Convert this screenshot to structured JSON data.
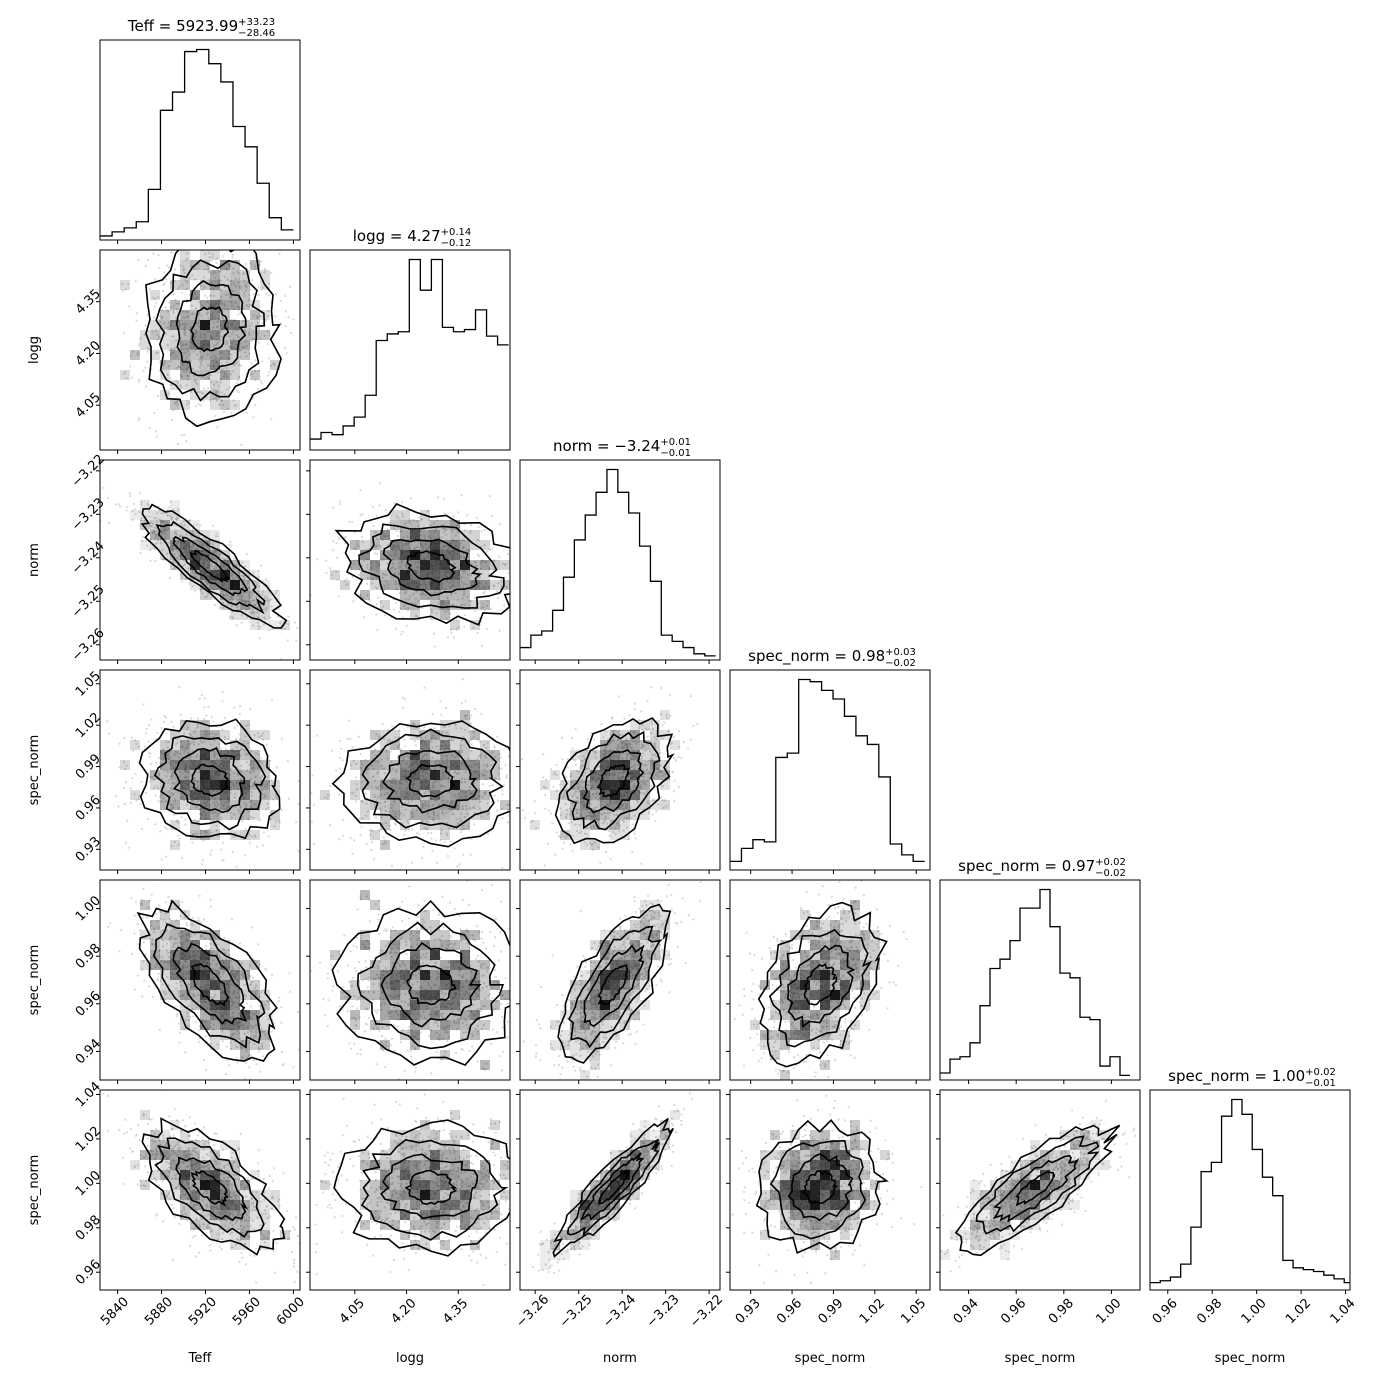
{
  "figure": {
    "kind": "corner plot"
  },
  "params": [
    {
      "name": "Teff",
      "value": "5923.99",
      "plus": "+33.23",
      "minus": "−28.46",
      "ticks": [
        5840,
        5880,
        5920,
        5960,
        6000
      ],
      "tick_labels": [
        "5840",
        "5880",
        "5920",
        "5960",
        "6000"
      ],
      "range": [
        5824,
        6006
      ],
      "median": 5923.99,
      "sigma": 31
    },
    {
      "name": "logg",
      "value": "4.27",
      "plus": "+0.14",
      "minus": "−0.12",
      "ticks": [
        4.05,
        4.2,
        4.35
      ],
      "tick_labels": [
        "4.05",
        "4.20",
        "4.35"
      ],
      "range": [
        3.92,
        4.5
      ],
      "median": 4.27,
      "sigma": 0.13
    },
    {
      "name": "norm",
      "value": "−3.24",
      "plus": "+0.01",
      "minus": "−0.01",
      "ticks": [
        -3.26,
        -3.25,
        -3.24,
        -3.23,
        -3.22
      ],
      "tick_labels": [
        "−3.26",
        "−3.25",
        "−3.24",
        "−3.23",
        "−3.22"
      ],
      "range": [
        -3.2635,
        -3.2175
      ],
      "median": -3.242,
      "sigma": 0.0065
    },
    {
      "name": "spec_norm",
      "value": "0.98",
      "plus": "+0.03",
      "minus": "−0.02",
      "ticks": [
        0.93,
        0.96,
        0.99,
        1.02,
        1.05
      ],
      "tick_labels": [
        "0.93",
        "0.96",
        "0.99",
        "1.02",
        "1.05"
      ],
      "range": [
        0.915,
        1.06
      ],
      "median": 0.98,
      "sigma": 0.022
    },
    {
      "name": "spec_norm",
      "value": "0.97",
      "plus": "+0.02",
      "minus": "−0.02",
      "ticks": [
        0.94,
        0.96,
        0.98,
        1.0
      ],
      "tick_labels": [
        "0.94",
        "0.96",
        "0.98",
        "1.00"
      ],
      "range": [
        0.928,
        1.012
      ],
      "median": 0.968,
      "sigma": 0.016
    },
    {
      "name": "spec_norm",
      "value": "1.00",
      "plus": "+0.02",
      "minus": "−0.01",
      "ticks": [
        0.96,
        0.98,
        1.0,
        1.02,
        1.04
      ],
      "tick_labels": [
        "0.96",
        "0.98",
        "1.00",
        "1.02",
        "1.04"
      ],
      "range": [
        0.952,
        1.042
      ],
      "median": 0.998,
      "sigma": 0.014
    }
  ],
  "chart_data": {
    "type": "corner",
    "series_names": [
      "Teff",
      "logg",
      "norm",
      "spec_norm",
      "spec_norm",
      "spec_norm"
    ],
    "histograms": [
      {
        "param": "Teff",
        "bin_edges": [
          5824,
          5835,
          5846,
          5857,
          5868,
          5879,
          5890,
          5901,
          5912,
          5923,
          5934,
          5945,
          5956,
          5967,
          5978,
          5989,
          6000
        ],
        "counts": [
          2,
          4,
          6,
          9,
          25,
          64,
          73,
          93,
          94,
          87,
          78,
          56,
          46,
          28,
          11,
          5
        ]
      },
      {
        "param": "logg",
        "bin_edges": [
          3.92,
          3.952,
          3.984,
          4.016,
          4.048,
          4.08,
          4.112,
          4.144,
          4.176,
          4.208,
          4.24,
          4.272,
          4.304,
          4.336,
          4.368,
          4.4,
          4.432,
          4.464,
          4.496
        ],
        "counts": [
          5,
          8,
          7,
          11,
          15,
          25,
          50,
          53,
          54,
          87,
          73,
          87,
          56,
          54,
          55,
          64,
          52,
          48
        ]
      },
      {
        "param": "norm",
        "bin_edges": [
          -3.2635,
          -3.261,
          -3.2585,
          -3.256,
          -3.2535,
          -3.251,
          -3.2485,
          -3.246,
          -3.2435,
          -3.241,
          -3.2385,
          -3.236,
          -3.2335,
          -3.231,
          -3.2285,
          -3.226,
          -3.2235,
          -3.221,
          -3.2185
        ],
        "counts": [
          6,
          12,
          14,
          24,
          40,
          58,
          70,
          81,
          92,
          81,
          71,
          55,
          38,
          12,
          9,
          6,
          3,
          2
        ]
      },
      {
        "param": "spec_norm",
        "bin_edges": [
          0.915,
          0.9233,
          0.9316,
          0.9399,
          0.9482,
          0.9565,
          0.9648,
          0.9731,
          0.9814,
          0.9897,
          0.998,
          1.0063,
          1.0146,
          1.0229,
          1.0312,
          1.0395,
          1.0478,
          1.0561
        ],
        "counts": [
          4,
          10,
          14,
          13,
          52,
          54,
          88,
          87,
          83,
          79,
          71,
          62,
          58,
          43,
          12,
          7,
          4
        ]
      },
      {
        "param": "spec_norm",
        "bin_edges": [
          0.928,
          0.9322,
          0.9364,
          0.9406,
          0.9448,
          0.949,
          0.9532,
          0.9574,
          0.9616,
          0.9658,
          0.97,
          0.9742,
          0.9784,
          0.9826,
          0.9868,
          0.991,
          0.9952,
          0.9994,
          1.0036,
          1.0078
        ],
        "counts": [
          3,
          9,
          10,
          16,
          32,
          48,
          52,
          60,
          74,
          74,
          82,
          66,
          46,
          44,
          27,
          26,
          6,
          10,
          2
        ]
      },
      {
        "param": "spec_norm",
        "bin_edges": [
          0.952,
          0.9566,
          0.9612,
          0.9658,
          0.9704,
          0.975,
          0.9796,
          0.9842,
          0.9888,
          0.9934,
          0.998,
          1.0026,
          1.0072,
          1.0118,
          1.0164,
          1.021,
          1.0256,
          1.0302,
          1.0348,
          1.0394,
          1.042
        ],
        "counts": [
          4,
          5,
          7,
          14,
          34,
          64,
          69,
          94,
          103,
          95,
          76,
          61,
          51,
          16,
          12,
          11,
          10,
          8,
          6,
          4
        ]
      }
    ],
    "pairs": [
      {
        "x": 0,
        "y": 1,
        "corr": 0.05
      },
      {
        "x": 0,
        "y": 2,
        "corr": -0.85
      },
      {
        "x": 1,
        "y": 2,
        "corr": -0.25
      },
      {
        "x": 0,
        "y": 3,
        "corr": -0.1
      },
      {
        "x": 1,
        "y": 3,
        "corr": 0.05
      },
      {
        "x": 2,
        "y": 3,
        "corr": 0.4
      },
      {
        "x": 0,
        "y": 4,
        "corr": -0.6
      },
      {
        "x": 1,
        "y": 4,
        "corr": 0.0
      },
      {
        "x": 2,
        "y": 4,
        "corr": 0.7
      },
      {
        "x": 3,
        "y": 4,
        "corr": 0.35
      },
      {
        "x": 0,
        "y": 5,
        "corr": -0.6
      },
      {
        "x": 1,
        "y": 5,
        "corr": 0.0
      },
      {
        "x": 2,
        "y": 5,
        "corr": 0.9
      },
      {
        "x": 3,
        "y": 5,
        "corr": 0.1
      },
      {
        "x": 4,
        "y": 5,
        "corr": 0.8
      }
    ],
    "contour_levels": [
      0.5,
      1.0,
      1.5,
      2.0
    ],
    "grid": false
  },
  "colors": {
    "line": "#000000",
    "background": "#ffffff",
    "density": "#000000",
    "points": "#c8c8c8"
  }
}
